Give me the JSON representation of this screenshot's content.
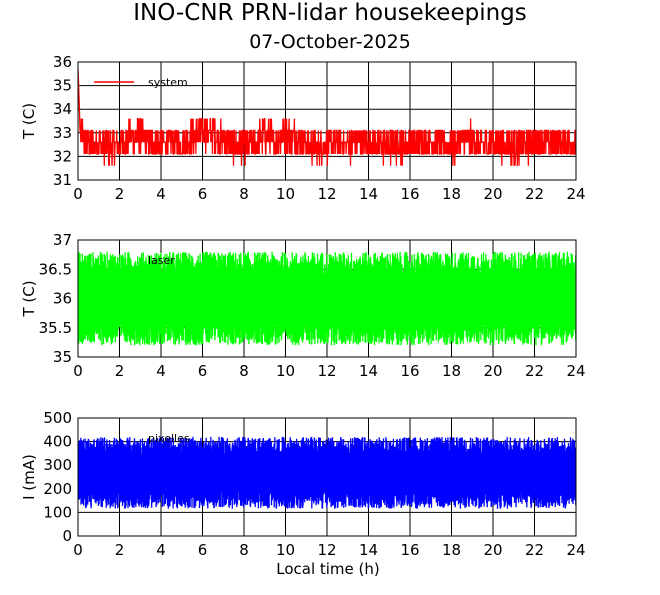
{
  "title": "INO-CNR PRN-lidar housekeepings",
  "subtitle": "07-October-2025",
  "xlabel": "Local time (h)",
  "chart_data": [
    {
      "type": "line",
      "ylabel": "T (C)",
      "xlim": [
        0,
        24
      ],
      "ylim": [
        31,
        36
      ],
      "xticks": [
        0,
        2,
        4,
        6,
        8,
        10,
        12,
        14,
        16,
        18,
        20,
        22,
        24
      ],
      "yticks": [
        31,
        32,
        33,
        34,
        35,
        36
      ],
      "ytick_labels": [
        "31",
        "32",
        "33",
        "34",
        "35",
        "36"
      ],
      "grid": true,
      "series": [
        {
          "name": "system",
          "color": "#ff0000",
          "x": [
            0,
            0.05,
            0.1,
            0.5,
            1,
            1.5,
            2,
            2.5,
            3,
            3.5,
            4,
            4.5,
            5,
            5.5,
            6,
            6.5,
            7,
            7.5,
            8,
            8.5,
            9,
            9.5,
            10,
            10.5,
            11,
            11.5,
            12,
            12.5,
            13,
            13.5,
            14,
            14.5,
            15,
            15.5,
            16,
            16.5,
            17,
            17.5,
            18,
            18.5,
            19,
            19.5,
            20,
            20.5,
            21,
            21.5,
            22,
            22.5,
            23,
            23.5,
            24
          ],
          "y": [
            35.7,
            34.5,
            33.0,
            32.5,
            32.6,
            32.4,
            32.5,
            32.8,
            32.9,
            32.6,
            32.5,
            32.6,
            32.5,
            32.8,
            33.0,
            33.0,
            32.7,
            32.5,
            32.4,
            32.6,
            32.9,
            32.7,
            32.9,
            32.8,
            32.5,
            32.4,
            32.5,
            32.6,
            32.5,
            32.6,
            32.6,
            32.5,
            32.4,
            32.5,
            32.6,
            32.5,
            32.6,
            32.5,
            32.4,
            32.6,
            32.7,
            32.5,
            32.6,
            32.5,
            32.4,
            32.5,
            32.5,
            32.7,
            32.6,
            32.6,
            32.5
          ],
          "band_min": 31.5,
          "band_max": 33.6
        }
      ]
    },
    {
      "type": "line",
      "ylabel": "T (C)",
      "xlim": [
        0,
        24
      ],
      "ylim": [
        35,
        37
      ],
      "xticks": [
        0,
        2,
        4,
        6,
        8,
        10,
        12,
        14,
        16,
        18,
        20,
        22,
        24
      ],
      "yticks": [
        35,
        35.5,
        36,
        36.5,
        37
      ],
      "ytick_labels": [
        "35",
        "35.5",
        "36",
        "36.5",
        "37"
      ],
      "grid": true,
      "series": [
        {
          "name": "laser",
          "color": "#00ff00",
          "mean": 36.0,
          "band_min": 35.2,
          "band_max": 36.8
        }
      ]
    },
    {
      "type": "line",
      "ylabel": "I (mA)",
      "xlim": [
        0,
        24
      ],
      "ylim": [
        0,
        500
      ],
      "xticks": [
        0,
        2,
        4,
        6,
        8,
        10,
        12,
        14,
        16,
        18,
        20,
        22,
        24
      ],
      "yticks": [
        0,
        100,
        200,
        300,
        400,
        500
      ],
      "ytick_labels": [
        "0",
        "100",
        "200",
        "300",
        "400",
        "500"
      ],
      "grid": true,
      "series": [
        {
          "name": "pixelles",
          "color": "#0000ff",
          "mean": 265,
          "band_min": 115,
          "band_max": 420
        }
      ]
    }
  ]
}
